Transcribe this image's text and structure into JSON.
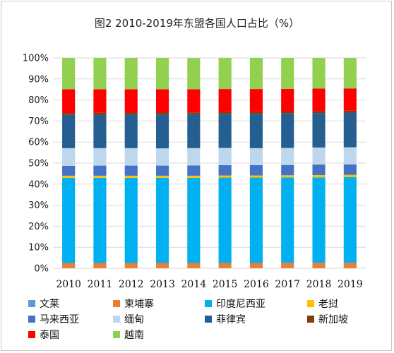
{
  "chart_data": {
    "type": "bar",
    "stacked": true,
    "title": "图2 2010-2019年东盟各国人口占比（%）",
    "categories": [
      "2010",
      "2011",
      "2012",
      "2013",
      "2014",
      "2015",
      "2016",
      "2017",
      "2018",
      "2019"
    ],
    "ylim": [
      0,
      100
    ],
    "y_ticks": [
      "0%",
      "10%",
      "20%",
      "30%",
      "40%",
      "50%",
      "60%",
      "70%",
      "80%",
      "90%",
      "100%"
    ],
    "grid": true,
    "legend_position": "bottom",
    "series": [
      {
        "name": "文莱",
        "color": "#5b9bd5",
        "values": [
          0.1,
          0.1,
          0.1,
          0.1,
          0.1,
          0.1,
          0.1,
          0.1,
          0.1,
          0.1
        ]
      },
      {
        "name": "柬埔寨",
        "color": "#ed7d31",
        "values": [
          2.4,
          2.4,
          2.4,
          2.4,
          2.4,
          2.4,
          2.4,
          2.5,
          2.5,
          2.5
        ]
      },
      {
        "name": "印度尼西亚",
        "color": "#00b0f0",
        "values": [
          40.5,
          40.5,
          40.5,
          40.5,
          40.5,
          40.6,
          40.6,
          40.6,
          40.6,
          40.7
        ]
      },
      {
        "name": "老挝",
        "color": "#ffc000",
        "values": [
          1.0,
          1.0,
          1.0,
          1.0,
          1.0,
          1.0,
          1.0,
          1.0,
          1.1,
          1.1
        ]
      },
      {
        "name": "马来西亚",
        "color": "#4472c4",
        "values": [
          4.7,
          4.8,
          4.8,
          4.8,
          4.9,
          4.9,
          4.9,
          4.9,
          5.0,
          5.0
        ]
      },
      {
        "name": "缅甸",
        "color": "#bdd7ee",
        "values": [
          8.4,
          8.3,
          8.3,
          8.2,
          8.2,
          8.2,
          8.1,
          8.1,
          8.1,
          8.1
        ]
      },
      {
        "name": "菲律宾",
        "color": "#255e91",
        "values": [
          15.8,
          15.9,
          16.0,
          16.1,
          16.1,
          16.2,
          16.3,
          16.4,
          16.4,
          16.5
        ]
      },
      {
        "name": "新加坡",
        "color": "#843c0c",
        "values": [
          0.9,
          0.9,
          0.9,
          0.9,
          0.9,
          0.9,
          0.9,
          0.9,
          0.9,
          0.9
        ]
      },
      {
        "name": "泰国",
        "color": "#ff0000",
        "values": [
          11.3,
          11.2,
          11.1,
          11.1,
          11.0,
          10.9,
          10.9,
          10.8,
          10.7,
          10.6
        ]
      },
      {
        "name": "越南",
        "color": "#92d050",
        "values": [
          14.9,
          14.9,
          14.9,
          14.9,
          14.8,
          14.8,
          14.8,
          14.7,
          14.6,
          14.5
        ]
      }
    ]
  }
}
